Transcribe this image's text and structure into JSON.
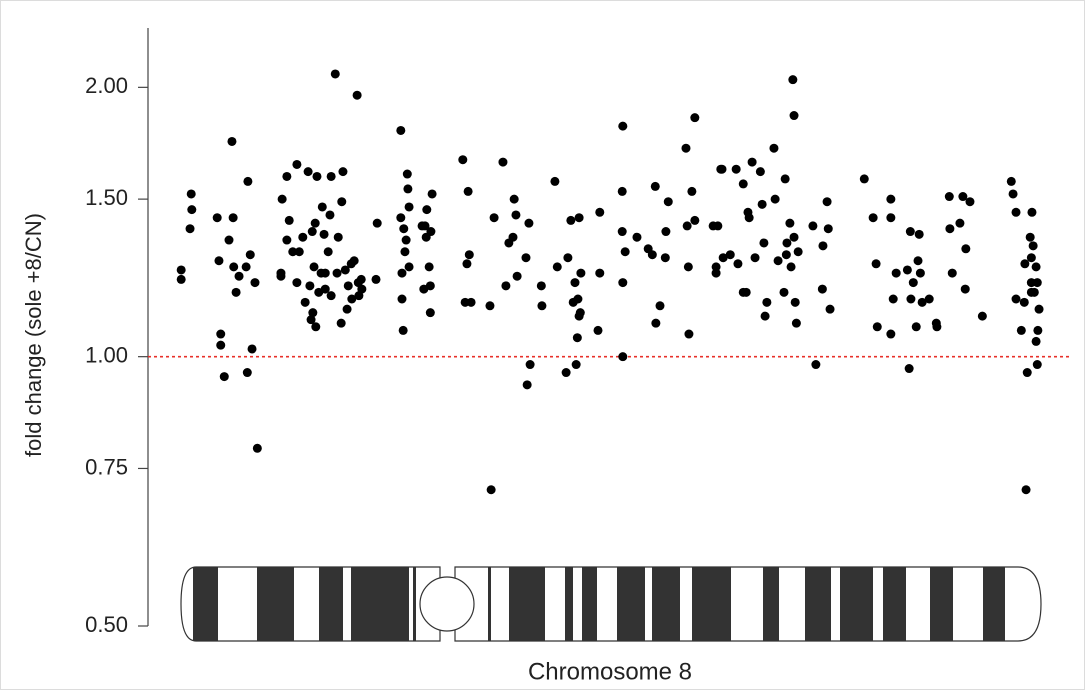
{
  "chart_data": {
    "type": "scatter",
    "y_label": "fold change (sole +8/CN)",
    "x_label": "Chromosome 8",
    "log_y": true,
    "color": "#000000",
    "hline": 1,
    "hline_color": "#e8302a",
    "xlim": [
      0,
      146
    ],
    "ylim": [
      0.5,
      2.33
    ],
    "yticks": [
      {
        "value": 0.5,
        "label": "0.50"
      },
      {
        "value": 0.75,
        "label": "0.75"
      },
      {
        "value": 1,
        "label": "1.00"
      },
      {
        "value": 1.5,
        "label": "1.50"
      },
      {
        "value": 2,
        "label": "2.00"
      }
    ],
    "x": [
      0.2,
      0.2,
      1.9,
      2.0,
      1.7,
      6.3,
      6.6,
      6.9,
      6.9,
      7.5,
      8.3,
      8.8,
      9.0,
      9.1,
      9.5,
      10.0,
      11.2,
      11.4,
      11.5,
      11.9,
      12.2,
      12.7,
      13.1,
      17.1,
      17.1,
      17.3,
      18.1,
      18.1,
      18.5,
      19.1,
      19.8,
      19.8,
      20.2,
      20.8,
      21.2,
      21.7,
      22.0,
      22.2,
      22.4,
      22.5,
      22.7,
      22.9,
      23.0,
      23.2,
      23.5,
      23.9,
      24.1,
      24.4,
      24.6,
      24.6,
      25.1,
      25.4,
      25.6,
      25.6,
      26.3,
      26.6,
      26.8,
      27.3,
      27.4,
      27.6,
      28.0,
      28.3,
      28.5,
      29.0,
      29.1,
      29.5,
      30.0,
      30.2,
      30.3,
      30.7,
      30.8,
      33.2,
      33.4,
      37.4,
      37.4,
      37.6,
      37.6,
      37.8,
      37.9,
      38.1,
      38.3,
      38.6,
      38.5,
      38.8,
      38.8,
      41.0,
      41.3,
      41.5,
      41.7,
      41.8,
      42.2,
      42.4,
      42.4,
      42.5,
      42.7,
      47.9,
      48.3,
      48.6,
      48.8,
      49.0,
      49.3,
      52.5,
      52.7,
      53.2,
      54.7,
      55.2,
      55.7,
      56.4,
      56.6,
      57.1,
      56.9,
      58.6,
      59.1,
      59.3,
      58.8,
      61.2,
      61.3,
      63.5,
      63.9,
      65.4,
      65.7,
      66.2,
      66.6,
      66.9,
      67.1,
      67.3,
      67.4,
      67.6,
      67.6,
      67.8,
      67.9,
      70.8,
      71.1,
      71.1,
      75.0,
      74.9,
      74.9,
      75.0,
      75.0,
      75.4,
      77.4,
      79.3,
      80.0,
      80.5,
      80.6,
      81.3,
      82.2,
      82.3,
      82.7,
      85.7,
      85.9,
      86.1,
      86.2,
      86.7,
      87.2,
      87.2,
      90.3,
      90.8,
      90.8,
      91.1,
      91.6,
      91.8,
      92.0,
      93.2,
      94.2,
      94.5,
      95.4,
      95.4,
      95.9,
      96.2,
      96.4,
      96.9,
      97.4,
      98.3,
      98.6,
      98.9,
      99.1,
      99.4,
      100.6,
      100.8,
      101.3,
      102.3,
      102.5,
      102.7,
      102.8,
      103.3,
      103.5,
      103.8,
      104.0,
      104.0,
      104.2,
      104.4,
      104.7,
      107.2,
      107.7,
      108.8,
      108.9,
      109.6,
      109.8,
      110.1,
      115.9,
      117.4,
      117.9,
      118.1,
      120.4,
      120.4,
      120.4,
      120.8,
      121.3,
      123.2,
      123.5,
      123.7,
      123.8,
      124.2,
      124.7,
      125.0,
      125.2,
      125.4,
      125.7,
      126.9,
      128.1,
      128.2,
      130.3,
      130.4,
      130.8,
      132.1,
      132.6,
      133.0,
      133.1,
      133.8,
      135.9,
      140.8,
      141.1,
      141.6,
      141.6,
      142.5,
      143.0,
      143.1,
      143.3,
      143.5,
      144.0,
      144.2,
      144.2,
      144.2,
      144.3,
      144.5,
      144.7,
      145.0,
      145.2,
      145.3,
      145.5,
      145.0,
      145.2
    ],
    "values": [
      1.25,
      1.22,
      1.52,
      1.46,
      1.39,
      1.43,
      1.28,
      1.06,
      1.03,
      0.95,
      1.35,
      1.74,
      1.43,
      1.26,
      1.18,
      1.23,
      1.26,
      0.96,
      1.57,
      1.3,
      1.02,
      1.21,
      0.79,
      1.24,
      1.23,
      1.5,
      1.59,
      1.35,
      1.42,
      1.31,
      1.64,
      1.21,
      1.31,
      1.36,
      1.15,
      1.61,
      1.2,
      1.1,
      1.38,
      1.12,
      1.26,
      1.41,
      1.08,
      1.59,
      1.18,
      1.24,
      1.47,
      1.37,
      1.19,
      1.24,
      1.31,
      1.44,
      1.17,
      1.59,
      2.07,
      1.24,
      1.36,
      1.09,
      1.49,
      1.61,
      1.25,
      1.13,
      1.2,
      1.27,
      1.16,
      1.28,
      1.96,
      1.21,
      1.17,
      1.22,
      1.19,
      1.22,
      1.41,
      1.79,
      1.43,
      1.16,
      1.24,
      1.07,
      1.39,
      1.31,
      1.35,
      1.54,
      1.6,
      1.47,
      1.26,
      1.4,
      1.19,
      1.4,
      1.36,
      1.46,
      1.26,
      1.12,
      1.2,
      1.38,
      1.52,
      1.66,
      1.15,
      1.27,
      1.53,
      1.3,
      1.15,
      1.14,
      0.71,
      1.43,
      1.65,
      1.2,
      1.34,
      1.36,
      1.5,
      1.23,
      1.44,
      1.29,
      1.41,
      0.98,
      0.93,
      1.2,
      1.14,
      1.57,
      1.26,
      0.96,
      1.29,
      1.42,
      1.15,
      1.21,
      0.98,
      1.05,
      1.16,
      1.11,
      1.43,
      1.12,
      1.24,
      1.07,
      1.24,
      1.45,
      1.81,
      1.53,
      1.38,
      1.21,
      1.0,
      1.31,
      1.36,
      1.32,
      1.3,
      1.55,
      1.09,
      1.14,
      1.29,
      1.38,
      1.49,
      1.71,
      1.4,
      1.26,
      1.06,
      1.53,
      1.85,
      1.42,
      1.4,
      1.24,
      1.26,
      1.4,
      1.62,
      1.62,
      1.29,
      1.3,
      1.62,
      1.27,
      1.56,
      1.18,
      1.18,
      1.45,
      1.43,
      1.65,
      1.29,
      1.61,
      1.48,
      1.34,
      1.11,
      1.15,
      1.71,
      1.5,
      1.28,
      1.18,
      1.58,
      1.3,
      1.34,
      1.41,
      1.26,
      2.04,
      1.86,
      1.36,
      1.15,
      1.09,
      1.31,
      1.4,
      0.98,
      1.19,
      1.33,
      1.49,
      1.39,
      1.13,
      1.58,
      1.43,
      1.27,
      1.08,
      1.43,
      1.5,
      1.06,
      1.16,
      1.24,
      1.25,
      0.97,
      1.38,
      1.16,
      1.21,
      1.08,
      1.28,
      1.37,
      1.24,
      1.15,
      1.16,
      1.09,
      1.08,
      1.51,
      1.39,
      1.24,
      1.41,
      1.51,
      1.19,
      1.32,
      1.49,
      1.11,
      1.57,
      1.52,
      1.45,
      1.16,
      1.07,
      1.15,
      1.27,
      0.71,
      0.96,
      1.36,
      1.21,
      1.29,
      1.18,
      1.45,
      1.33,
      1.18,
      1.26,
      1.21,
      1.07,
      1.13,
      1.04,
      0.98
    ]
  }
}
